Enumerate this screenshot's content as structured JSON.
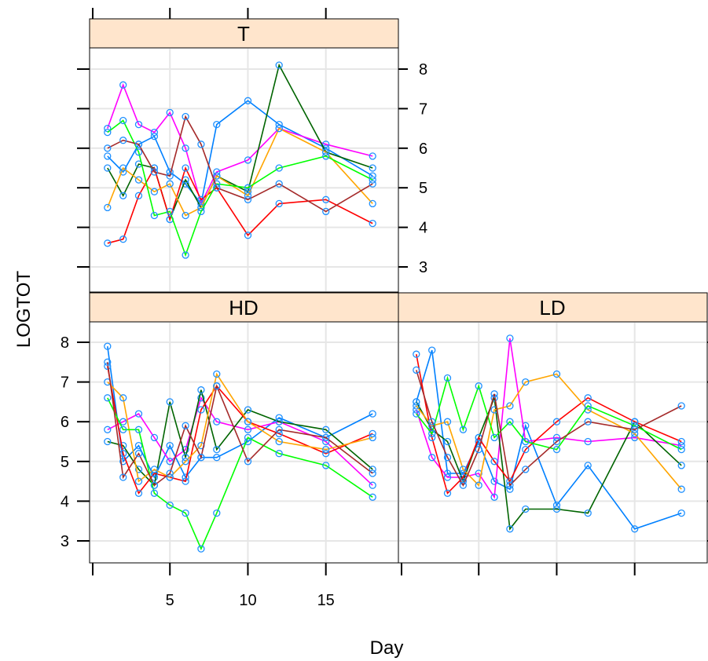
{
  "chart_data": {
    "type": "line",
    "title": "",
    "xlabel": "Day",
    "ylabel": "LOGTOT",
    "xlim": [
      0,
      19.5
    ],
    "ylim": [
      2.3,
      8.5
    ],
    "x_ticks": [
      5,
      10,
      15
    ],
    "y_ticks": [
      3,
      4,
      5,
      6,
      7,
      8
    ],
    "grid": true,
    "point_color": "#1e90ff",
    "colors": [
      "#0080ff",
      "#ff00ff",
      "#006400",
      "#ff0000",
      "#ffa500",
      "#00ff00",
      "#a52a2a"
    ],
    "panels": [
      {
        "name": "T",
        "series": [
          {
            "x": [
              1,
              2,
              3,
              4,
              5,
              6,
              7,
              8,
              10,
              12,
              15,
              18
            ],
            "y": [
              5.8,
              5.4,
              6.1,
              6.3,
              5.4,
              5.1,
              4.6,
              6.6,
              7.2,
              6.6,
              6.0,
              5.3
            ]
          },
          {
            "x": [
              1,
              2,
              3,
              4,
              5,
              6,
              7,
              8,
              10,
              12,
              15,
              18
            ],
            "y": [
              6.5,
              7.6,
              6.6,
              6.4,
              6.9,
              6.0,
              4.6,
              5.4,
              5.7,
              6.5,
              6.1,
              5.8
            ]
          },
          {
            "x": [
              1,
              2,
              3,
              4,
              5,
              6,
              7,
              8,
              10,
              12,
              15,
              18
            ],
            "y": [
              5.5,
              4.8,
              5.6,
              5.5,
              4.2,
              5.2,
              4.5,
              5.3,
              4.9,
              8.1,
              5.9,
              5.5
            ]
          },
          {
            "x": [
              1,
              2,
              3,
              4,
              5,
              6,
              7,
              8,
              10,
              12,
              15,
              18
            ],
            "y": [
              3.6,
              3.7,
              4.8,
              5.5,
              4.2,
              5.5,
              4.7,
              5.0,
              3.8,
              4.6,
              4.7,
              4.1
            ]
          },
          {
            "x": [
              1,
              2,
              3,
              4,
              5,
              6,
              7,
              8,
              10,
              12,
              15,
              18
            ],
            "y": [
              4.5,
              5.5,
              5.2,
              4.9,
              5.1,
              4.3,
              4.5,
              5.3,
              4.8,
              6.5,
              5.9,
              4.6
            ]
          },
          {
            "x": [
              1,
              2,
              3,
              4,
              5,
              6,
              7,
              8,
              10,
              12,
              15,
              18
            ],
            "y": [
              6.4,
              6.7,
              5.9,
              4.3,
              4.4,
              3.3,
              4.4,
              5.1,
              5.0,
              5.5,
              5.8,
              5.2
            ]
          },
          {
            "x": [
              1,
              2,
              3,
              4,
              5,
              6,
              7,
              8,
              10,
              12,
              15,
              18
            ],
            "y": [
              6.0,
              6.2,
              6.1,
              5.4,
              5.3,
              6.8,
              6.1,
              5.0,
              4.7,
              5.1,
              4.4,
              5.1
            ]
          }
        ]
      },
      {
        "name": "HD",
        "series": [
          {
            "x": [
              1,
              2,
              3,
              4,
              5,
              6,
              7,
              8,
              10,
              12,
              15,
              18
            ],
            "y": [
              7.9,
              5.0,
              5.4,
              4.6,
              5.4,
              4.6,
              5.1,
              5.1,
              5.5,
              6.1,
              5.6,
              6.2
            ]
          },
          {
            "x": [
              1,
              2,
              3,
              4,
              5,
              6,
              7,
              8,
              10,
              12,
              15,
              18
            ],
            "y": [
              5.8,
              6.0,
              6.2,
              5.6,
              5.0,
              5.3,
              6.6,
              6.0,
              5.8,
              6.0,
              5.5,
              4.4
            ]
          },
          {
            "x": [
              1,
              2,
              3,
              4,
              5,
              6,
              7,
              8,
              10,
              12,
              15,
              18
            ],
            "y": [
              5.5,
              5.4,
              4.8,
              4.4,
              6.5,
              5.1,
              6.8,
              5.3,
              6.3,
              6.0,
              5.8,
              4.8
            ]
          },
          {
            "x": [
              1,
              2,
              3,
              4,
              5,
              6,
              7,
              8,
              10,
              12,
              15,
              18
            ],
            "y": [
              7.4,
              5.2,
              4.2,
              4.7,
              4.6,
              4.5,
              6.3,
              6.9,
              6.0,
              5.7,
              5.2,
              5.7
            ]
          },
          {
            "x": [
              1,
              2,
              3,
              4,
              5,
              6,
              7,
              8,
              10,
              12,
              15,
              18
            ],
            "y": [
              7.0,
              6.6,
              4.5,
              4.8,
              4.6,
              5.0,
              5.4,
              7.2,
              6.0,
              5.5,
              5.3,
              5.6
            ]
          },
          {
            "x": [
              1,
              2,
              3,
              4,
              5,
              6,
              7,
              8,
              10,
              12,
              15,
              18
            ],
            "y": [
              6.6,
              5.8,
              5.8,
              4.2,
              3.9,
              3.7,
              2.8,
              3.7,
              5.6,
              5.2,
              4.9,
              4.1
            ]
          },
          {
            "x": [
              1,
              2,
              3,
              4,
              5,
              6,
              7,
              8,
              10,
              12,
              15,
              18
            ],
            "y": [
              7.5,
              4.6,
              5.2,
              4.4,
              4.7,
              5.9,
              5.1,
              6.9,
              5.0,
              5.8,
              5.6,
              4.7
            ]
          }
        ]
      },
      {
        "name": "LD",
        "series": [
          {
            "x": [
              1,
              2,
              3,
              4,
              5,
              6,
              7,
              8,
              10,
              12,
              15,
              18
            ],
            "y": [
              6.5,
              7.8,
              4.7,
              4.7,
              5.5,
              4.5,
              4.3,
              5.9,
              3.9,
              4.9,
              3.3,
              3.7
            ]
          },
          {
            "x": [
              1,
              2,
              3,
              4,
              5,
              6,
              7,
              8,
              10,
              12,
              15,
              18
            ],
            "y": [
              6.3,
              5.1,
              4.6,
              4.6,
              4.7,
              4.1,
              8.1,
              5.5,
              5.6,
              5.5,
              5.6,
              5.4
            ]
          },
          {
            "x": [
              1,
              2,
              3,
              4,
              5,
              6,
              7,
              8,
              10,
              12,
              15,
              18
            ],
            "y": [
              6.5,
              5.8,
              5.5,
              4.5,
              5.6,
              6.6,
              3.3,
              3.8,
              3.8,
              3.7,
              6.0,
              4.9
            ]
          },
          {
            "x": [
              1,
              2,
              3,
              4,
              5,
              6,
              7,
              8,
              10,
              12,
              15,
              18
            ],
            "y": [
              7.7,
              5.6,
              4.2,
              4.6,
              5.6,
              5.0,
              4.5,
              5.3,
              6.0,
              6.6,
              6.0,
              5.5
            ]
          },
          {
            "x": [
              1,
              2,
              3,
              4,
              5,
              6,
              7,
              8,
              10,
              12,
              15,
              18
            ],
            "y": [
              6.4,
              5.9,
              6.0,
              4.8,
              4.4,
              6.3,
              6.4,
              7.0,
              7.2,
              6.3,
              5.7,
              4.3
            ]
          },
          {
            "x": [
              1,
              2,
              3,
              4,
              5,
              6,
              7,
              8,
              10,
              12,
              15,
              18
            ],
            "y": [
              6.2,
              5.7,
              7.1,
              5.8,
              6.9,
              5.6,
              6.0,
              5.5,
              5.3,
              6.4,
              5.9,
              5.3
            ]
          },
          {
            "x": [
              1,
              2,
              3,
              4,
              5,
              6,
              7,
              8,
              10,
              12,
              15,
              18
            ],
            "y": [
              7.3,
              6.0,
              5.1,
              4.4,
              5.3,
              6.7,
              4.4,
              4.8,
              5.5,
              6.0,
              5.8,
              6.4
            ]
          }
        ]
      }
    ]
  }
}
